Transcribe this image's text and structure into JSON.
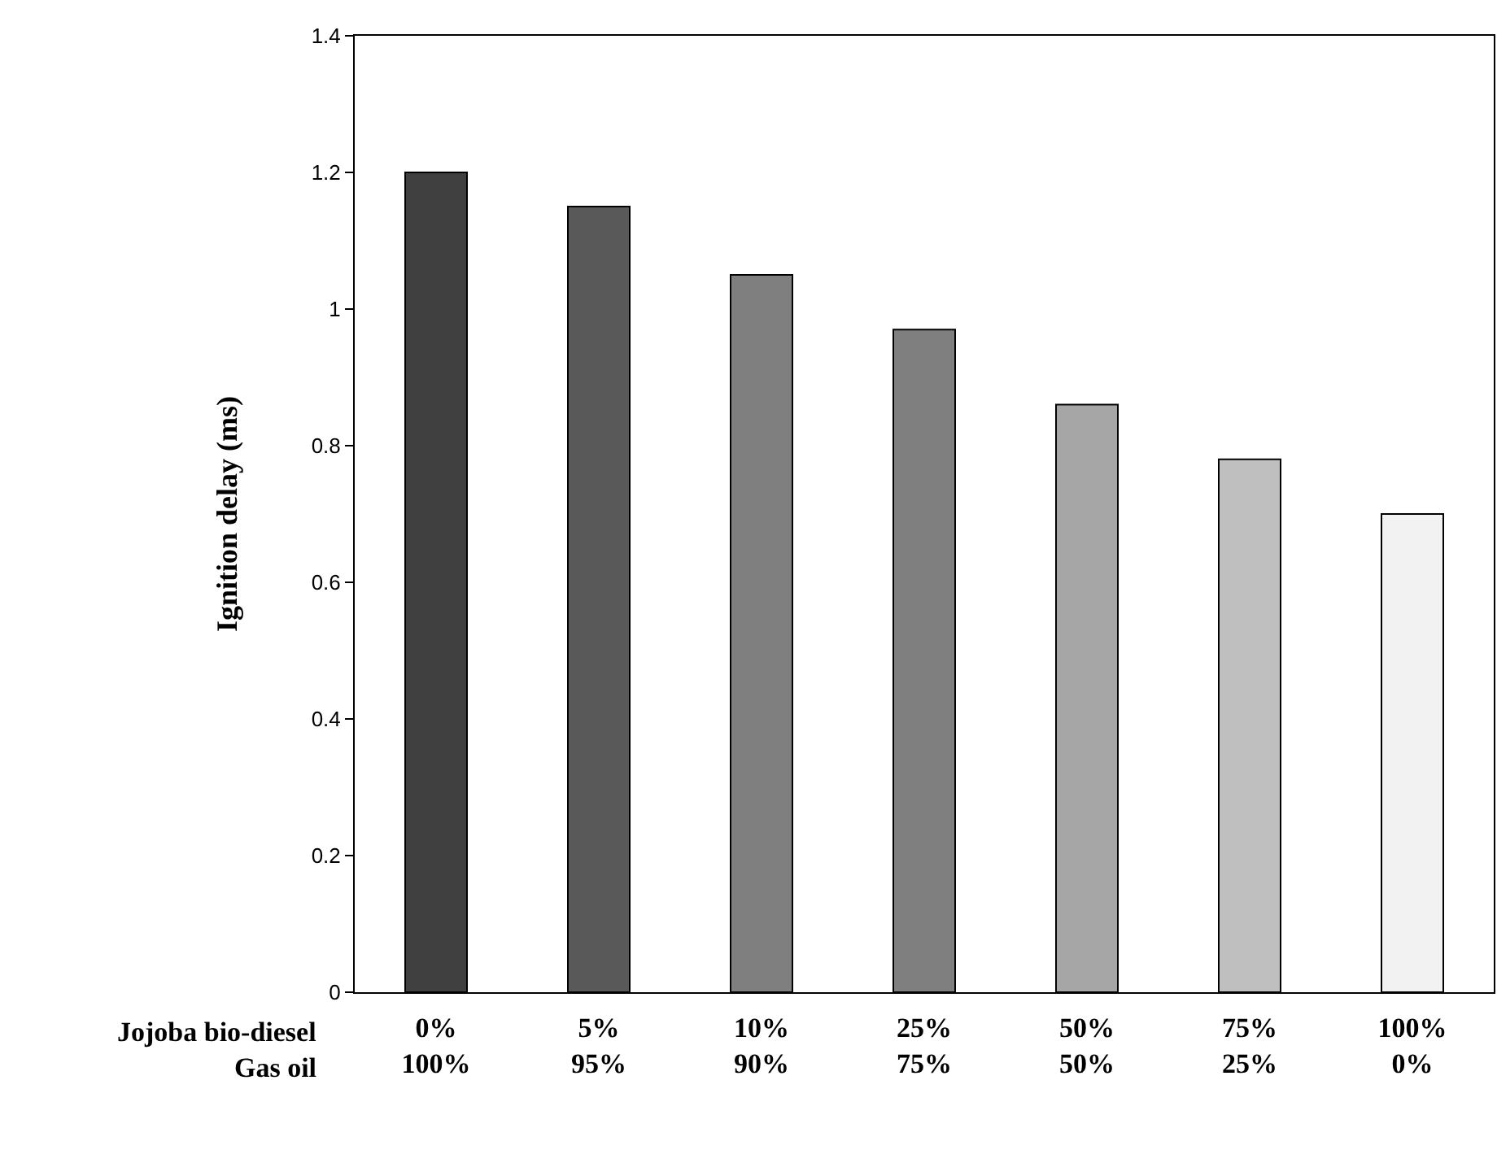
{
  "chart_data": {
    "type": "bar",
    "ylabel": "Ignition delay (ms)",
    "categories": [
      "0%\n100%",
      "5%\n95%",
      "10%\n90%",
      "25%\n75%",
      "50%\n50%",
      "75%\n25%",
      "100%\n0%"
    ],
    "values": [
      1.2,
      1.15,
      1.05,
      0.97,
      0.86,
      0.78,
      0.7
    ],
    "colors": [
      "#404040",
      "#595959",
      "#7f7f7f",
      "#7f7f7f",
      "#a6a6a6",
      "#bfbfbf",
      "#f2f2f2"
    ],
    "annotations": [
      "Jojoba bio-diesel",
      "Gas oil"
    ],
    "ylim": [
      0,
      1.4
    ],
    "yticks": [
      0,
      0.2,
      0.4,
      0.6,
      0.8,
      1,
      1.2,
      1.4
    ],
    "grid": false
  }
}
